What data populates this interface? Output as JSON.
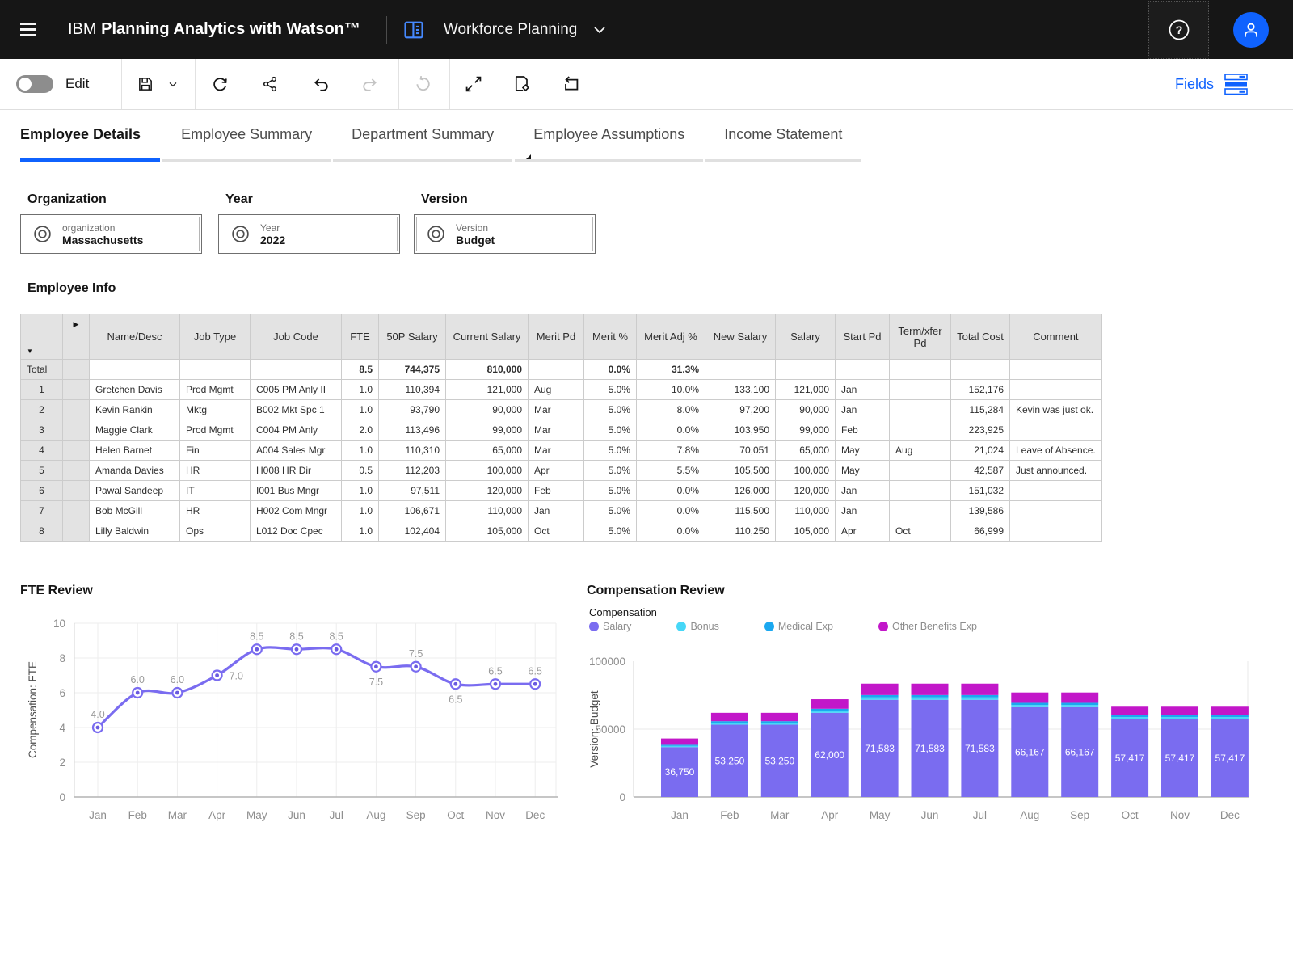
{
  "colors": {
    "accent": "#0f62fe",
    "header_bg": "#161616",
    "salary_purple": "#7a6cf0",
    "bonus_cyan": "#46d7f7",
    "medical_blue": "#1ba8f0",
    "other_magenta": "#c217c9"
  },
  "header": {
    "brand_prefix": "IBM",
    "brand_bold": "Planning Analytics with Watson™",
    "workspace": "Workforce Planning"
  },
  "toolbar": {
    "edit_label": "Edit",
    "fields_label": "Fields",
    "icons": [
      "save",
      "save-menu",
      "refresh",
      "share",
      "undo",
      "redo",
      "reset",
      "maximize",
      "save-view",
      "revert"
    ]
  },
  "tabs": [
    {
      "label": "Employee Details",
      "active": true
    },
    {
      "label": "Employee Summary",
      "active": false
    },
    {
      "label": "Department Summary",
      "active": false
    },
    {
      "label": "Employee Assumptions",
      "active": false
    },
    {
      "label": "Income Statement",
      "active": false
    }
  ],
  "filters": [
    {
      "label": "Organization",
      "dimension": "organization",
      "value": "Massachusetts"
    },
    {
      "label": "Year",
      "dimension": "Year",
      "value": "2022"
    },
    {
      "label": "Version",
      "dimension": "Version",
      "value": "Budget"
    }
  ],
  "table": {
    "title": "Employee Info",
    "columns": [
      "Name/Desc",
      "Job Type",
      "Job Code",
      "FTE",
      "50P Salary",
      "Current Salary",
      "Merit Pd",
      "Merit %",
      "Merit Adj %",
      "New Salary",
      "Salary",
      "Start Pd",
      "Term/xfer Pd",
      "Total Cost",
      "Comment"
    ],
    "total_row": {
      "label": "Total",
      "cells": [
        "",
        "",
        "",
        "8.5",
        "744,375",
        "810,000",
        "",
        "0.0%",
        "31.3%",
        "",
        "",
        "",
        "",
        "",
        ""
      ]
    },
    "rows": [
      {
        "num": "1",
        "cells": [
          "Gretchen Davis",
          "Prod Mgmt",
          "C005 PM Anly II",
          "1.0",
          "110,394",
          "121,000",
          "Aug",
          "5.0%",
          "10.0%",
          "133,100",
          "121,000",
          "Jan",
          "",
          "152,176",
          ""
        ]
      },
      {
        "num": "2",
        "cells": [
          "Kevin Rankin",
          "Mktg",
          "B002 Mkt Spc 1",
          "1.0",
          "93,790",
          "90,000",
          "Mar",
          "5.0%",
          "8.0%",
          "97,200",
          "90,000",
          "Jan",
          "",
          "115,284",
          "Kevin was just ok."
        ]
      },
      {
        "num": "3",
        "cells": [
          "Maggie Clark",
          "Prod Mgmt",
          "C004 PM Anly",
          "2.0",
          "113,496",
          "99,000",
          "Mar",
          "5.0%",
          "0.0%",
          "103,950",
          "99,000",
          "Feb",
          "",
          "223,925",
          ""
        ]
      },
      {
        "num": "4",
        "cells": [
          "Helen Barnet",
          "Fin",
          "A004 Sales Mgr",
          "1.0",
          "110,310",
          "65,000",
          "Mar",
          "5.0%",
          "7.8%",
          "70,051",
          "65,000",
          "May",
          "Aug",
          "21,024",
          "Leave of Absence."
        ]
      },
      {
        "num": "5",
        "cells": [
          "Amanda Davies",
          "HR",
          "H008 HR Dir",
          "0.5",
          "112,203",
          "100,000",
          "Apr",
          "5.0%",
          "5.5%",
          "105,500",
          "100,000",
          "May",
          "",
          "42,587",
          "Just announced."
        ]
      },
      {
        "num": "6",
        "cells": [
          "Pawal Sandeep",
          "IT",
          "I001 Bus Mngr",
          "1.0",
          "97,511",
          "120,000",
          "Feb",
          "5.0%",
          "0.0%",
          "126,000",
          "120,000",
          "Jan",
          "",
          "151,032",
          ""
        ]
      },
      {
        "num": "7",
        "cells": [
          "Bob McGill",
          "HR",
          "H002 Com Mngr",
          "1.0",
          "106,671",
          "110,000",
          "Jan",
          "5.0%",
          "0.0%",
          "115,500",
          "110,000",
          "Jan",
          "",
          "139,586",
          ""
        ]
      },
      {
        "num": "8",
        "cells": [
          "Lilly Baldwin",
          "Ops",
          "L012 Doc Cpec",
          "1.0",
          "102,404",
          "105,000",
          "Oct",
          "5.0%",
          "0.0%",
          "110,250",
          "105,000",
          "Apr",
          "Oct",
          "66,999",
          ""
        ]
      }
    ]
  },
  "chart_data": [
    {
      "type": "line",
      "title": "FTE Review",
      "ylabel": "Compensation: FTE",
      "x": [
        "Jan",
        "Feb",
        "Mar",
        "Apr",
        "May",
        "Jun",
        "Jul",
        "Aug",
        "Sep",
        "Oct",
        "Nov",
        "Dec"
      ],
      "values": [
        4.0,
        6.0,
        6.0,
        7.0,
        8.5,
        8.5,
        8.5,
        7.5,
        7.5,
        6.5,
        6.5,
        6.5
      ],
      "point_labels": [
        "4.0",
        "6.0",
        "6.0",
        "7.0",
        "8.5",
        "8.5",
        "8.5",
        "7.5",
        "7.5",
        "6.5",
        "6.5",
        "6.5"
      ],
      "label_placement": [
        "above",
        "above",
        "above",
        "right",
        "above",
        "above",
        "above",
        "below",
        "above",
        "below",
        "above",
        "above"
      ],
      "ylim": [
        0,
        10
      ],
      "yticks": [
        0,
        2,
        4,
        6,
        8,
        10
      ],
      "grid": true,
      "line_color": "#7a6cf0",
      "label_color": "#9a9a9a"
    },
    {
      "type": "bar",
      "stacked": true,
      "title": "Compensation Review",
      "legend_title": "Compensation",
      "legend_position": "top",
      "ylabel": "Version: Budget",
      "categories": [
        "Jan",
        "Feb",
        "Mar",
        "Apr",
        "May",
        "Jun",
        "Jul",
        "Aug",
        "Sep",
        "Oct",
        "Nov",
        "Dec"
      ],
      "series": [
        {
          "name": "Salary",
          "color": "#7a6cf0",
          "values": [
            36750,
            53250,
            53250,
            62000,
            71583,
            71583,
            71583,
            66167,
            66167,
            57417,
            57417,
            57417
          ],
          "labels": [
            "36,750",
            "53,250",
            "53,250",
            "62,000",
            "71,583",
            "71,583",
            "71,583",
            "66,167",
            "66,167",
            "57,417",
            "57,417",
            "57,417"
          ]
        },
        {
          "name": "Bonus",
          "color": "#46d7f7",
          "values": [
            850,
            1300,
            1300,
            1500,
            1750,
            1750,
            1750,
            1600,
            1600,
            1400,
            1400,
            1400
          ]
        },
        {
          "name": "Medical Exp",
          "color": "#1ba8f0",
          "values": [
            850,
            1300,
            1300,
            1500,
            1750,
            1750,
            1750,
            1600,
            1600,
            1400,
            1400,
            1400
          ]
        },
        {
          "name": "Other Benefits Exp",
          "color": "#c217c9",
          "values": [
            4650,
            6150,
            6150,
            7000,
            8400,
            8400,
            8400,
            7600,
            7600,
            6300,
            6300,
            6300
          ]
        }
      ],
      "ylim": [
        0,
        100000
      ],
      "yticks": [
        0,
        50000,
        100000
      ],
      "grid": true
    }
  ]
}
